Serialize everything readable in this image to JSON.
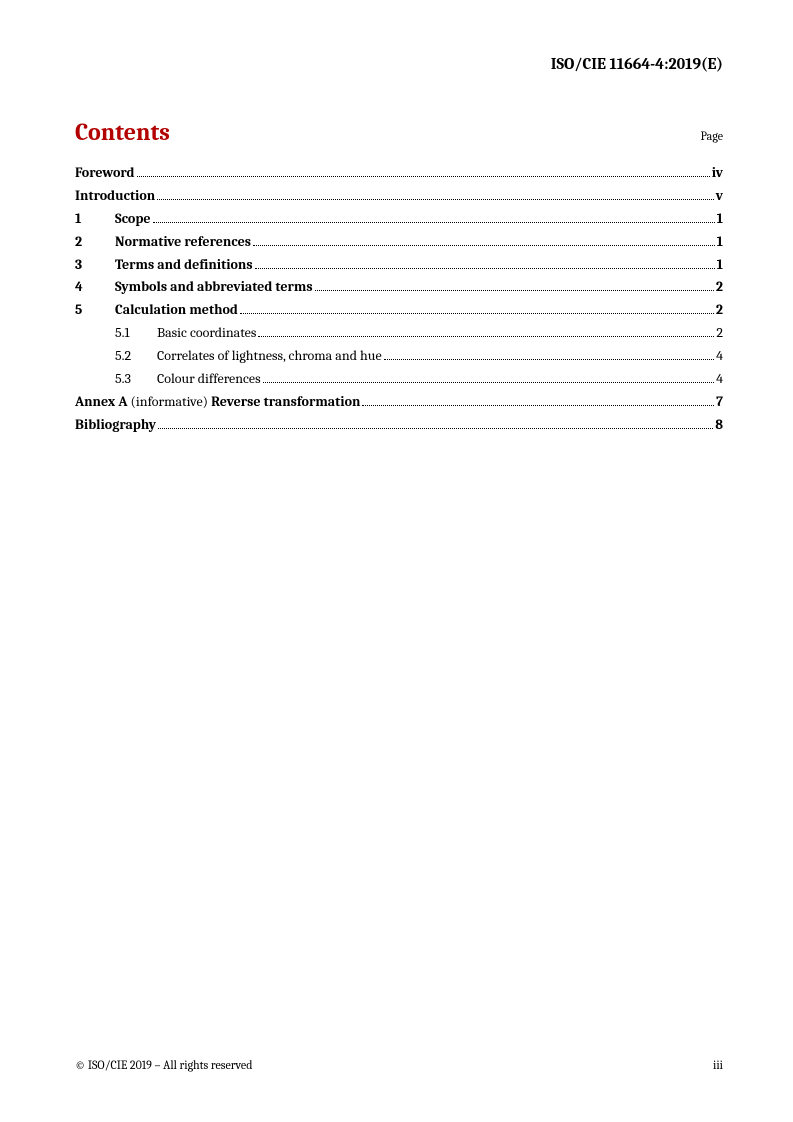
{
  "docId": "ISO/CIE 11664-4:2019(E)",
  "heading": "Contents",
  "pageLabel": "Page",
  "entries": [
    {
      "num": "",
      "title": "Foreword",
      "page": "iv",
      "bold": true,
      "indent": 0
    },
    {
      "num": "",
      "title": "Introduction",
      "page": "v",
      "bold": true,
      "indent": 0
    },
    {
      "num": "1",
      "title": "Scope",
      "page": "1",
      "bold": true,
      "indent": 0
    },
    {
      "num": "2",
      "title": "Normative references",
      "page": "1",
      "bold": true,
      "indent": 0
    },
    {
      "num": "3",
      "title": "Terms and definitions",
      "page": "1",
      "bold": true,
      "indent": 0
    },
    {
      "num": "4",
      "title": "Symbols and abbreviated terms",
      "page": "2",
      "bold": true,
      "indent": 0
    },
    {
      "num": "5",
      "title": "Calculation method",
      "page": "2",
      "bold": true,
      "indent": 0
    },
    {
      "num": "5.1",
      "title": "Basic coordinates",
      "page": "2",
      "bold": false,
      "indent": 1
    },
    {
      "num": "5.2",
      "title": "Correlates of lightness, chroma and hue",
      "page": "4",
      "bold": false,
      "indent": 1
    },
    {
      "num": "5.3",
      "title": "Colour differences",
      "page": "4",
      "bold": false,
      "indent": 1
    },
    {
      "annex": true,
      "prefix": "Annex A",
      "note": "(informative)",
      "title": "Reverse transformation",
      "page": "7",
      "indent": 0
    },
    {
      "num": "",
      "title": "Bibliography",
      "page": "8",
      "bold": true,
      "indent": 0
    }
  ],
  "footerLeft": "© ISO/CIE 2019 – All rights reserved",
  "footerRight": "iii"
}
